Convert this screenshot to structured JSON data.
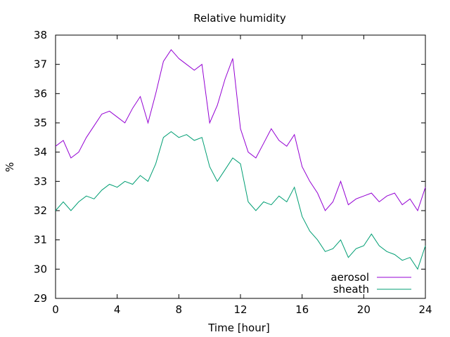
{
  "chart_data": {
    "type": "line",
    "title": "Relative humidity",
    "xlabel": "Time [hour]",
    "ylabel": "%",
    "xlim": [
      0,
      24
    ],
    "ylim": [
      29,
      38
    ],
    "xticks": [
      0,
      4,
      8,
      12,
      16,
      20,
      24
    ],
    "yticks": [
      29,
      30,
      31,
      32,
      33,
      34,
      35,
      36,
      37,
      38
    ],
    "grid": false,
    "legend_position": "bottom-right",
    "series": [
      {
        "name": "aerosol",
        "color": "#9400d3",
        "x": [
          0,
          0.5,
          1,
          1.5,
          2,
          2.5,
          3,
          3.5,
          4,
          4.5,
          5,
          5.5,
          6,
          6.5,
          7,
          7.5,
          8,
          8.5,
          9,
          9.5,
          10,
          10.5,
          11,
          11.5,
          12,
          12.5,
          13,
          13.5,
          14,
          14.5,
          15,
          15.5,
          16,
          16.5,
          17,
          17.5,
          18,
          18.5,
          19,
          19.5,
          20,
          20.5,
          21,
          21.5,
          22,
          22.5,
          23,
          23.5,
          24
        ],
        "y": [
          34.2,
          34.4,
          33.8,
          34.0,
          34.5,
          34.9,
          35.3,
          35.4,
          35.2,
          35.0,
          35.5,
          35.9,
          35.0,
          36.0,
          37.1,
          37.5,
          37.2,
          37.0,
          36.8,
          37.0,
          35.0,
          35.6,
          36.5,
          37.2,
          34.8,
          34.0,
          33.8,
          34.3,
          34.8,
          34.4,
          34.2,
          34.6,
          33.5,
          33.0,
          32.6,
          32.0,
          32.3,
          33.0,
          32.2,
          32.4,
          32.5,
          32.6,
          32.3,
          32.5,
          32.6,
          32.2,
          32.4,
          32.0,
          32.8
        ]
      },
      {
        "name": "sheath",
        "color": "#009e73",
        "x": [
          0,
          0.5,
          1,
          1.5,
          2,
          2.5,
          3,
          3.5,
          4,
          4.5,
          5,
          5.5,
          6,
          6.5,
          7,
          7.5,
          8,
          8.5,
          9,
          9.5,
          10,
          10.5,
          11,
          11.5,
          12,
          12.5,
          13,
          13.5,
          14,
          14.5,
          15,
          15.5,
          16,
          16.5,
          17,
          17.5,
          18,
          18.5,
          19,
          19.5,
          20,
          20.5,
          21,
          21.5,
          22,
          22.5,
          23,
          23.5,
          24
        ],
        "y": [
          32.0,
          32.3,
          32.0,
          32.3,
          32.5,
          32.4,
          32.7,
          32.9,
          32.8,
          33.0,
          32.9,
          33.2,
          33.0,
          33.6,
          34.5,
          34.7,
          34.5,
          34.6,
          34.4,
          34.5,
          33.5,
          33.0,
          33.4,
          33.8,
          33.6,
          32.3,
          32.0,
          32.3,
          32.2,
          32.5,
          32.3,
          32.8,
          31.8,
          31.3,
          31.0,
          30.6,
          30.7,
          31.0,
          30.4,
          30.7,
          30.8,
          31.2,
          30.8,
          30.6,
          30.5,
          30.3,
          30.4,
          30.0,
          30.8
        ]
      }
    ]
  }
}
